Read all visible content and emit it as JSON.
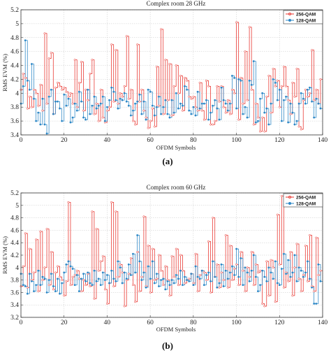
{
  "captions": [
    "(a)",
    "(b)"
  ],
  "chart_data": [
    {
      "type": "line",
      "title": "Complex room 28 GHz",
      "xlabel": "OFDM Symbols",
      "ylabel": "RMS EVM (%)",
      "xlim": [
        0,
        140
      ],
      "ylim": [
        3.4,
        5.2
      ],
      "xticks": [
        0,
        20,
        40,
        60,
        80,
        100,
        120,
        140
      ],
      "xtick_labels": [
        "0",
        "20",
        "40",
        "60",
        "80",
        "100",
        "120",
        "140"
      ],
      "yticks": [
        3.4,
        3.6,
        3.8,
        4,
        4.2,
        4.4,
        4.6,
        4.8,
        5,
        5.2
      ],
      "ytick_labels": [
        "3.4",
        "3.6",
        "3.8",
        "4",
        "4.2",
        "4.4",
        "4.6",
        "4.8",
        "5",
        "5.2"
      ],
      "grid": true,
      "legend_position": "top-right",
      "step": true,
      "x": [
        0,
        1,
        2,
        3,
        4,
        5,
        6,
        7,
        8,
        9,
        10,
        11,
        12,
        13,
        14,
        15,
        16,
        17,
        18,
        19,
        20,
        21,
        22,
        23,
        24,
        25,
        26,
        27,
        28,
        29,
        30,
        31,
        32,
        33,
        34,
        35,
        36,
        37,
        38,
        39,
        40,
        41,
        42,
        43,
        44,
        45,
        46,
        47,
        48,
        49,
        50,
        51,
        52,
        53,
        54,
        55,
        56,
        57,
        58,
        59,
        60,
        61,
        62,
        63,
        64,
        65,
        66,
        67,
        68,
        69,
        70,
        71,
        72,
        73,
        74,
        75,
        76,
        77,
        78,
        79,
        80,
        81,
        82,
        83,
        84,
        85,
        86,
        87,
        88,
        89,
        90,
        91,
        92,
        93,
        94,
        95,
        96,
        97,
        98,
        99,
        100,
        101,
        102,
        103,
        104,
        105,
        106,
        107,
        108,
        109,
        110,
        111,
        112,
        113,
        114,
        115,
        116,
        117,
        118,
        119,
        120,
        121,
        122,
        123,
        124,
        125,
        126,
        127,
        128,
        129,
        130,
        131,
        132,
        133,
        134,
        135,
        136,
        137,
        138,
        139
      ],
      "series": [
        {
          "name": "256-QAM",
          "color": "#e8302a",
          "marker": "circle",
          "values": [
            4.05,
            4.28,
            4.22,
            3.78,
            3.95,
            3.8,
            4.05,
            4.0,
            3.82,
            4.12,
            3.75,
            4.86,
            3.85,
            4.5,
            4.58,
            3.7,
            4.08,
            4.15,
            4.1,
            4.05,
            4.08,
            4.02,
            3.95,
            4.0,
            3.85,
            4.48,
            3.8,
            4.15,
            4.45,
            3.75,
            4.05,
            3.9,
            4.28,
            4.48,
            3.7,
            3.85,
            3.6,
            4.05,
            3.65,
            3.58,
            3.75,
            3.8,
            4.7,
            3.88,
            4.62,
            3.85,
            4.0,
            3.95,
            4.1,
            4.82,
            3.92,
            4.05,
            3.6,
            3.55,
            4.7,
            3.88,
            4.05,
            3.75,
            3.65,
            3.5,
            3.6,
            3.78,
            3.52,
            4.38,
            3.82,
            4.92,
            3.7,
            4.48,
            3.9,
            4.42,
            3.68,
            4.1,
            4.4,
            4.0,
            4.25,
            3.75,
            4.22,
            4.18,
            3.95,
            3.92,
            3.95,
            3.8,
            3.75,
            4.15,
            3.75,
            3.62,
            4.18,
            4.1,
            3.55,
            3.55,
            3.6,
            4.1,
            3.88,
            4.1,
            3.8,
            3.72,
            3.9,
            3.7,
            4.05,
            4.0,
            5.02,
            3.62,
            4.22,
            3.85,
            4.6,
            3.9,
            4.95,
            4.05,
            3.55,
            3.85,
            3.65,
            3.45,
            3.65,
            3.45,
            3.95,
            4.25,
            3.72,
            4.35,
            4.1,
            4.18,
            3.8,
            4.1,
            4.38,
            4.1,
            3.9,
            3.7,
            4.15,
            3.95,
            4.35,
            3.52,
            3.48,
            3.9,
            4.05,
            3.95,
            4.0,
            4.62,
            3.9,
            4.05,
            3.85,
            4.2
          ]
        },
        {
          "name": "128-QAM",
          "color": "#2a86c6",
          "marker": "circle",
          "values": [
            3.85,
            4.1,
            4.76,
            4.18,
            4.05,
            4.42,
            3.92,
            3.6,
            3.72,
            3.55,
            3.92,
            3.55,
            3.42,
            3.95,
            4.05,
            3.7,
            3.88,
            3.88,
            3.78,
            3.6,
            3.98,
            3.82,
            3.92,
            3.58,
            3.65,
            3.85,
            3.75,
            4.02,
            3.88,
            3.65,
            3.62,
            4.05,
            3.7,
            3.82,
            3.95,
            3.78,
            3.82,
            3.85,
            3.95,
            3.6,
            3.8,
            3.9,
            4.08,
            4.02,
            3.9,
            3.78,
            3.92,
            3.9,
            4.0,
            3.88,
            3.82,
            3.68,
            3.75,
            3.85,
            3.88,
            3.98,
            3.7,
            3.88,
            3.62,
            4.05,
            4.02,
            3.82,
            3.68,
            3.8,
            3.95,
            3.7,
            3.8,
            3.9,
            3.7,
            3.65,
            3.9,
            3.72,
            4.0,
            3.78,
            3.85,
            3.82,
            4.1,
            4.05,
            3.75,
            3.7,
            3.8,
            3.68,
            4.02,
            3.78,
            3.85,
            3.85,
            3.9,
            3.62,
            3.72,
            3.82,
            3.9,
            3.78,
            3.62,
            4.08,
            3.9,
            3.85,
            3.75,
            3.85,
            4.25,
            4.22,
            3.78,
            4.2,
            4.18,
            3.7,
            3.8,
            3.65,
            4.18,
            4.12,
            4.46,
            3.58,
            3.6,
            3.92,
            4.0,
            3.72,
            3.78,
            3.55,
            3.85,
            4.2,
            4.15,
            3.9,
            4.05,
            3.6,
            3.9,
            3.95,
            3.58,
            3.85,
            3.72,
            3.55,
            3.6,
            3.85,
            4.0,
            3.92,
            3.85,
            4.05,
            4.08,
            3.88,
            3.65,
            3.92,
            3.85,
            3.78
          ]
        }
      ]
    },
    {
      "type": "line",
      "title": "Complex room 60 GHz",
      "xlabel": "OFDM Symbols",
      "ylabel": "RMS EVM (%)",
      "xlim": [
        0,
        140
      ],
      "ylim": [
        3.2,
        5.2
      ],
      "xticks": [
        0,
        20,
        40,
        60,
        80,
        100,
        120,
        140
      ],
      "xtick_labels": [
        "0",
        "20",
        "40",
        "60",
        "80",
        "100",
        "120",
        "140"
      ],
      "yticks": [
        3.2,
        3.4,
        3.6,
        3.8,
        4,
        4.2,
        4.4,
        4.6,
        4.8,
        5,
        5.2
      ],
      "ytick_labels": [
        "3.2",
        "3.4",
        "3.6",
        "3.8",
        "4",
        "4.2",
        "4.4",
        "4.6",
        "4.8",
        "5",
        "5.2"
      ],
      "grid": true,
      "legend_position": "top-right",
      "step": true,
      "x": [
        0,
        1,
        2,
        3,
        4,
        5,
        6,
        7,
        8,
        9,
        10,
        11,
        12,
        13,
        14,
        15,
        16,
        17,
        18,
        19,
        20,
        21,
        22,
        23,
        24,
        25,
        26,
        27,
        28,
        29,
        30,
        31,
        32,
        33,
        34,
        35,
        36,
        37,
        38,
        39,
        40,
        41,
        42,
        43,
        44,
        45,
        46,
        47,
        48,
        49,
        50,
        51,
        52,
        53,
        54,
        55,
        56,
        57,
        58,
        59,
        60,
        61,
        62,
        63,
        64,
        65,
        66,
        67,
        68,
        69,
        70,
        71,
        72,
        73,
        74,
        75,
        76,
        77,
        78,
        79,
        80,
        81,
        82,
        83,
        84,
        85,
        86,
        87,
        88,
        89,
        90,
        91,
        92,
        93,
        94,
        95,
        96,
        97,
        98,
        99,
        100,
        101,
        102,
        103,
        104,
        105,
        106,
        107,
        108,
        109,
        110,
        111,
        112,
        113,
        114,
        115,
        116,
        117,
        118,
        119,
        120,
        121,
        122,
        123,
        124,
        125,
        126,
        127,
        128,
        129,
        130,
        131,
        132,
        133,
        134,
        135,
        136,
        137,
        138,
        139
      ],
      "series": [
        {
          "name": "256-QAM",
          "color": "#e8302a",
          "marker": "circle",
          "values": [
            3.7,
            4.02,
            4.55,
            3.68,
            4.3,
            3.8,
            3.92,
            4.45,
            3.62,
            4.58,
            3.8,
            4.0,
            4.62,
            3.72,
            4.25,
            3.65,
            3.92,
            4.02,
            3.85,
            3.8,
            3.55,
            3.78,
            5.05,
            3.72,
            3.85,
            3.88,
            3.95,
            3.82,
            3.62,
            3.8,
            3.72,
            3.9,
            3.7,
            4.9,
            3.5,
            4.62,
            3.95,
            4.1,
            4.18,
            3.65,
            3.42,
            3.75,
            5.05,
            3.7,
            4.9,
            3.85,
            4.05,
            3.92,
            3.38,
            3.8,
            3.9,
            4.15,
            3.72,
            3.45,
            4.25,
            3.62,
            3.85,
            4.82,
            3.7,
            4.35,
            3.6,
            4.3,
            3.8,
            3.82,
            4.2,
            3.95,
            3.72,
            4.02,
            3.8,
            3.55,
            4.18,
            3.85,
            4.3,
            3.72,
            4.2,
            3.95,
            3.75,
            3.8,
            3.82,
            3.9,
            3.75,
            4.22,
            3.62,
            3.88,
            3.95,
            3.92,
            3.8,
            4.42,
            3.6,
            4.8,
            3.85,
            4.05,
            3.68,
            3.92,
            3.8,
            4.52,
            3.68,
            4.35,
            3.8,
            3.98,
            4.05,
            3.72,
            4.25,
            3.95,
            3.62,
            4.0,
            3.85,
            4.25,
            3.72,
            4.05,
            3.92,
            3.95,
            3.42,
            3.38,
            4.1,
            3.55,
            4.12,
            4.0,
            3.45,
            4.85,
            4.05,
            5.15,
            3.68,
            3.92,
            3.78,
            4.25,
            3.55,
            4.0,
            4.38,
            3.82,
            3.62,
            3.88,
            4.35,
            3.78,
            4.52,
            3.7,
            3.62,
            4.48,
            3.88,
            3.95
          ]
        },
        {
          "name": "128-QAM",
          "color": "#2a86c6",
          "marker": "circle",
          "values": [
            3.9,
            3.72,
            3.7,
            3.58,
            3.9,
            3.78,
            3.62,
            3.72,
            3.95,
            3.72,
            3.85,
            3.82,
            3.6,
            3.8,
            3.9,
            3.7,
            3.62,
            3.82,
            3.58,
            3.75,
            3.92,
            4.05,
            4.1,
            4.02,
            3.98,
            3.72,
            3.88,
            3.62,
            3.82,
            3.9,
            3.78,
            3.92,
            3.75,
            3.72,
            3.95,
            3.78,
            3.82,
            3.72,
            3.92,
            3.8,
            3.88,
            3.75,
            3.95,
            3.82,
            3.78,
            4.1,
            4.0,
            3.75,
            3.92,
            3.82,
            4.05,
            3.88,
            4.22,
            3.92,
            4.52,
            4.1,
            3.8,
            3.92,
            3.68,
            4.02,
            3.82,
            4.1,
            3.75,
            3.9,
            3.7,
            3.8,
            3.82,
            3.65,
            3.78,
            3.72,
            3.8,
            3.75,
            3.88,
            3.82,
            3.95,
            3.72,
            3.85,
            3.8,
            3.78,
            3.9,
            3.72,
            4.02,
            3.85,
            3.82,
            3.95,
            3.72,
            3.88,
            3.92,
            3.78,
            4.1,
            3.85,
            3.68,
            3.75,
            4.05,
            3.7,
            3.95,
            3.82,
            3.92,
            4.02,
            3.88,
            4.3,
            3.85,
            4.15,
            3.72,
            4.0,
            3.92,
            3.78,
            3.95,
            4.2,
            3.85,
            3.62,
            3.72,
            3.95,
            3.85,
            3.78,
            4.0,
            3.92,
            3.82,
            4.1,
            3.75,
            3.72,
            3.98,
            4.22,
            3.9,
            4.12,
            3.85,
            3.92,
            4.2,
            3.78,
            4.0,
            3.95,
            3.85,
            3.92,
            4.1,
            3.82,
            3.68,
            3.42,
            3.42,
            4.05,
            3.78
          ]
        }
      ]
    }
  ]
}
